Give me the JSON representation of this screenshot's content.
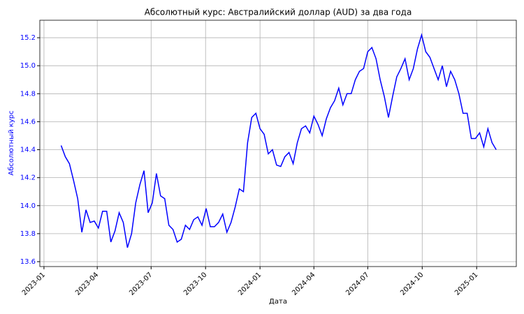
{
  "chart_data": {
    "type": "line",
    "title": "Абсолютный курс: Австралийский доллар (AUD) за два года",
    "xlabel": "Дата",
    "ylabel": "Абсолютный курс",
    "x": [
      "2023-01-30",
      "2023-02-06",
      "2023-02-13",
      "2023-02-20",
      "2023-02-27",
      "2023-03-06",
      "2023-03-13",
      "2023-03-20",
      "2023-03-27",
      "2023-04-03",
      "2023-04-10",
      "2023-04-17",
      "2023-04-24",
      "2023-05-01",
      "2023-05-08",
      "2023-05-15",
      "2023-05-22",
      "2023-05-29",
      "2023-06-05",
      "2023-06-12",
      "2023-06-19",
      "2023-06-26",
      "2023-07-03",
      "2023-07-10",
      "2023-07-17",
      "2023-07-24",
      "2023-07-31",
      "2023-08-07",
      "2023-08-14",
      "2023-08-21",
      "2023-08-28",
      "2023-09-04",
      "2023-09-11",
      "2023-09-18",
      "2023-09-25",
      "2023-10-02",
      "2023-10-09",
      "2023-10-16",
      "2023-10-23",
      "2023-10-30",
      "2023-11-06",
      "2023-11-13",
      "2023-11-20",
      "2023-11-27",
      "2023-12-04",
      "2023-12-11",
      "2023-12-18",
      "2023-12-25",
      "2024-01-01",
      "2024-01-08",
      "2024-01-15",
      "2024-01-22",
      "2024-01-29",
      "2024-02-05",
      "2024-02-12",
      "2024-02-19",
      "2024-02-26",
      "2024-03-04",
      "2024-03-11",
      "2024-03-18",
      "2024-03-25",
      "2024-04-01",
      "2024-04-08",
      "2024-04-15",
      "2024-04-22",
      "2024-04-29",
      "2024-05-06",
      "2024-05-13",
      "2024-05-20",
      "2024-05-27",
      "2024-06-03",
      "2024-06-10",
      "2024-06-17",
      "2024-06-24",
      "2024-07-01",
      "2024-07-08",
      "2024-07-15",
      "2024-07-22",
      "2024-07-29",
      "2024-08-05",
      "2024-08-12",
      "2024-08-19",
      "2024-08-26",
      "2024-09-02",
      "2024-09-09",
      "2024-09-16",
      "2024-09-23",
      "2024-09-30",
      "2024-10-07",
      "2024-10-14",
      "2024-10-21",
      "2024-10-28",
      "2024-11-04",
      "2024-11-11",
      "2024-11-18",
      "2024-11-25",
      "2024-12-02",
      "2024-12-09",
      "2024-12-16",
      "2024-12-23",
      "2024-12-30",
      "2025-01-06",
      "2025-01-13",
      "2025-01-20",
      "2025-01-27",
      "2025-02-03"
    ],
    "series": [
      {
        "name": "AUD",
        "color": "#0000ff",
        "values": [
          14.43,
          14.35,
          14.3,
          14.18,
          14.05,
          13.81,
          13.97,
          13.88,
          13.89,
          13.84,
          13.96,
          13.96,
          13.74,
          13.82,
          13.95,
          13.88,
          13.7,
          13.8,
          14.02,
          14.15,
          14.25,
          13.95,
          14.02,
          14.23,
          14.07,
          14.05,
          13.86,
          13.83,
          13.74,
          13.76,
          13.86,
          13.83,
          13.9,
          13.92,
          13.86,
          13.98,
          13.85,
          13.85,
          13.88,
          13.94,
          13.81,
          13.88,
          13.99,
          14.12,
          14.1,
          14.45,
          14.63,
          14.66,
          14.55,
          14.51,
          14.37,
          14.4,
          14.29,
          14.28,
          14.35,
          14.38,
          14.3,
          14.45,
          14.55,
          14.57,
          14.52,
          14.64,
          14.58,
          14.5,
          14.62,
          14.7,
          14.75,
          14.84,
          14.72,
          14.8,
          14.8,
          14.9,
          14.96,
          14.98,
          15.1,
          15.13,
          15.05,
          14.9,
          14.78,
          14.63,
          14.78,
          14.92,
          14.98,
          15.05,
          14.9,
          14.98,
          15.12,
          15.22,
          15.1,
          15.06,
          14.98,
          14.9,
          15.0,
          14.85,
          14.96,
          14.9,
          14.8,
          14.66,
          14.66,
          14.48,
          14.48,
          14.52,
          14.42,
          14.55,
          14.45,
          14.4
        ]
      }
    ],
    "xlim": [
      "2022-12-25",
      "2025-03-09"
    ],
    "xticks": [
      "2023-01",
      "2023-04",
      "2023-07",
      "2023-10",
      "2024-01",
      "2024-04",
      "2024-07",
      "2024-10",
      "2025-01"
    ],
    "ylim": [
      13.565,
      15.325
    ],
    "yticks": [
      13.6,
      13.8,
      {
        "value": 14,
        "label": "14.0"
      },
      14.2,
      14.4,
      14.6,
      14.8,
      {
        "value": 15,
        "label": "15.0"
      },
      15.2
    ],
    "grid": true
  }
}
